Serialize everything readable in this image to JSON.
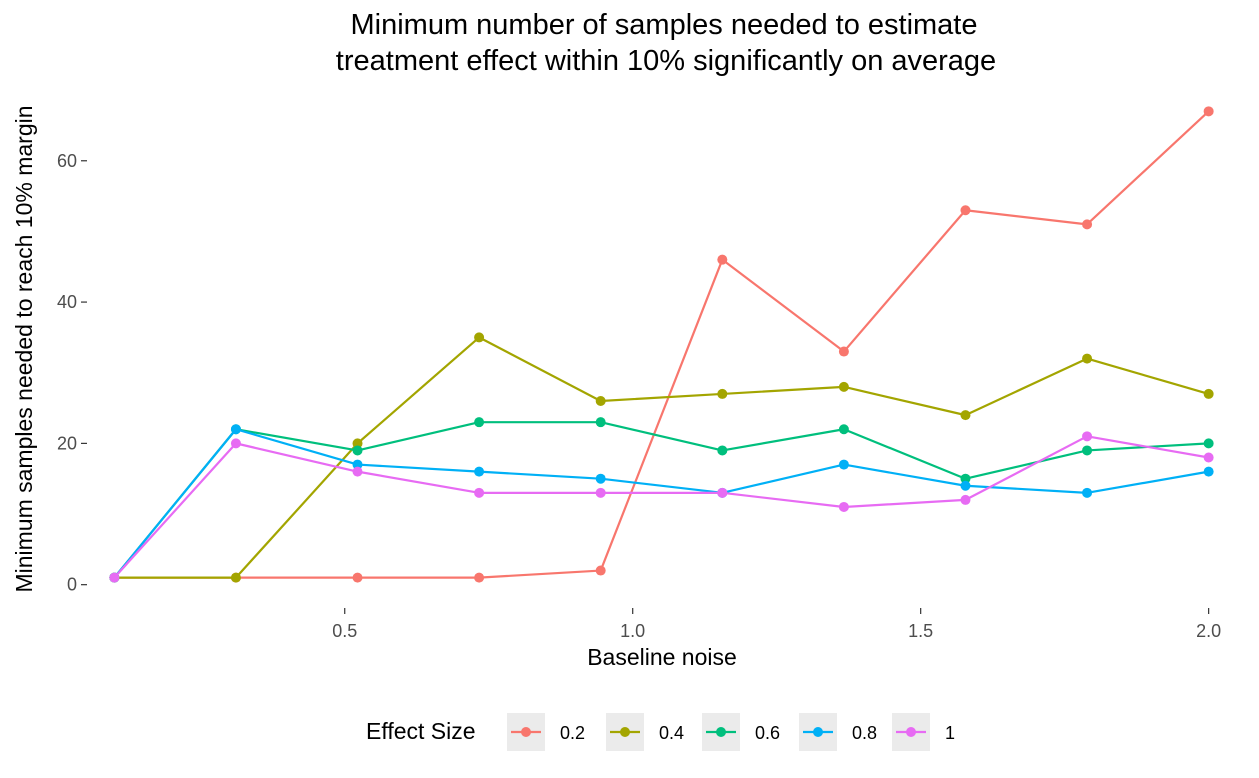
{
  "chart_data": {
    "type": "line",
    "title_lines": [
      "Minimum number of samples needed to estimate",
      "treatment effect within 10% significantly on average"
    ],
    "xlabel": "Baseline noise",
    "ylabel": "Minimum samples needed to reach 10% margin",
    "x": [
      0.1,
      0.3111,
      0.5222,
      0.7333,
      0.9444,
      1.1556,
      1.3667,
      1.5778,
      1.7889,
      2.0
    ],
    "xlim": [
      0.0525,
      2.0475
    ],
    "ylim": [
      -3.3,
      70.3
    ],
    "x_ticks": [
      0.5,
      1.0,
      1.5,
      2.0
    ],
    "x_tick_labels": [
      "0.5",
      "1.0",
      "1.5",
      "2.0"
    ],
    "y_ticks": [
      0,
      20,
      40,
      60
    ],
    "y_tick_labels": [
      "0",
      "20",
      "40",
      "60"
    ],
    "grid": false,
    "legend": {
      "title": "Effect Size",
      "position": "bottom"
    },
    "series": [
      {
        "name": "0.2",
        "color": "#F8766D",
        "values": [
          1,
          1,
          1,
          1,
          2,
          46,
          33,
          53,
          51,
          67
        ]
      },
      {
        "name": "0.4",
        "color": "#A3A500",
        "values": [
          1,
          1,
          20,
          35,
          26,
          27,
          28,
          24,
          32,
          27
        ]
      },
      {
        "name": "0.6",
        "color": "#00BF7D",
        "values": [
          1,
          22,
          19,
          23,
          23,
          19,
          22,
          15,
          19,
          20
        ]
      },
      {
        "name": "0.8",
        "color": "#00B0F6",
        "values": [
          1,
          22,
          17,
          16,
          15,
          13,
          17,
          14,
          13,
          16
        ]
      },
      {
        "name": "1",
        "color": "#E76BF3",
        "values": [
          1,
          20,
          16,
          13,
          13,
          13,
          11,
          12,
          21,
          18
        ]
      }
    ]
  }
}
